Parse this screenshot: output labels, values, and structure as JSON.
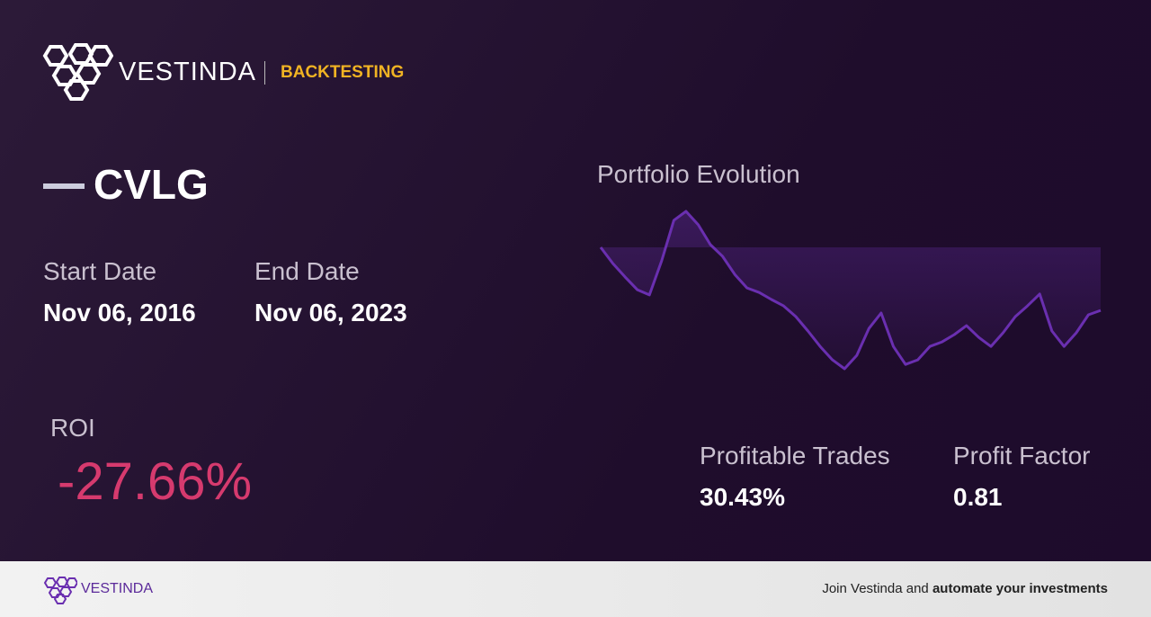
{
  "header": {
    "brand": "VESTINDA",
    "section": "BACKTESTING"
  },
  "ticker": "CVLG",
  "start_date": {
    "label": "Start Date",
    "value": "Nov 06, 2016"
  },
  "end_date": {
    "label": "End Date",
    "value": "Nov 06, 2023"
  },
  "roi": {
    "label": "ROI",
    "value": "-27.66%"
  },
  "profitable_trades": {
    "label": "Profitable Trades",
    "value": "30.43%"
  },
  "profit_factor": {
    "label": "Profit Factor",
    "value": "0.81"
  },
  "footer": {
    "brand": "VESTINDA",
    "cta_prefix": "Join Vestinda and",
    "cta_bold": "automate your investments"
  },
  "chart_data": {
    "type": "line",
    "title": "Portfolio Evolution",
    "color": "#6a2fb0",
    "values": [
      0,
      -7.1,
      -13,
      -18.6,
      -20.9,
      -5.9,
      11.9,
      15.8,
      9.9,
      1.2,
      -4,
      -11.9,
      -17.8,
      -19.8,
      -22.9,
      -25.7,
      -30.4,
      -36.7,
      -43.5,
      -49.4,
      -53.3,
      -47.4,
      -35.6,
      -28.8,
      -43.5,
      -51.4,
      -49.4,
      -43.5,
      -41.5,
      -38.3,
      -34.4,
      -39.5,
      -43.5,
      -37.5,
      -30.4,
      -25.7,
      -20.5,
      -36.7,
      -43.5,
      -37.5,
      -29.6,
      -27.66
    ]
  }
}
